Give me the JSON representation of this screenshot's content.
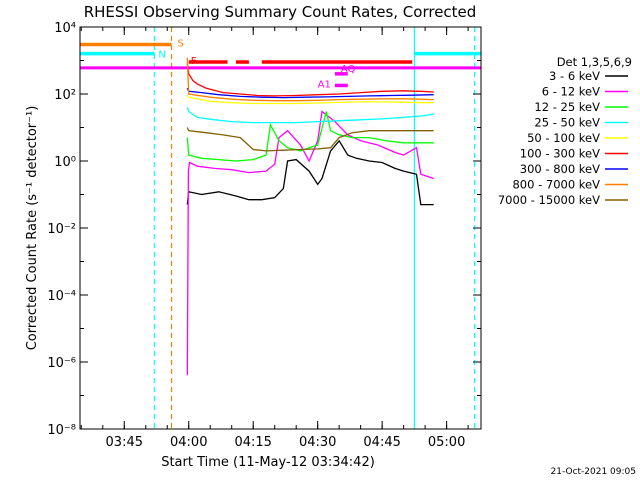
{
  "chart_data": {
    "type": "line",
    "title": "RHESSI Observing Summary Count Rates, Corrected",
    "xlabel": "Start Time (11-May-12 03:34:42)",
    "ylabel": "Corrected Count Rate (s⁻¹ detector⁻¹)",
    "yscale": "log",
    "xlim": [
      "03:34:42",
      "05:08:00"
    ],
    "ylim": [
      1e-08,
      10000
    ],
    "x_ticks": [
      "03:45",
      "04:00",
      "04:15",
      "04:30",
      "04:45",
      "05:00"
    ],
    "y_ticks": [
      {
        "value": 1e-08,
        "label": "10⁻⁸"
      },
      {
        "value": 1e-06,
        "label": "10⁻⁶"
      },
      {
        "value": 0.0001,
        "label": "10⁻⁴"
      },
      {
        "value": 0.01,
        "label": "10⁻²"
      },
      {
        "value": 1,
        "label": "10⁰"
      },
      {
        "value": 100,
        "label": "10²"
      },
      {
        "value": 10000,
        "label": "10⁴"
      }
    ],
    "legend_title": "Det 1,3,5,6,9",
    "legend_position": "right",
    "series": [
      {
        "name": "3 - 6 keV",
        "color": "#000000",
        "x": [
          "03:59:40",
          "04:00:00",
          "04:03:00",
          "04:07:00",
          "04:11:00",
          "04:14:00",
          "04:17:00",
          "04:20:00",
          "04:22:00",
          "04:23:00",
          "04:25:00",
          "04:28:00",
          "04:30:00",
          "04:31:00",
          "04:33:00",
          "04:35:00",
          "04:37:00",
          "04:39:00",
          "04:42:00",
          "04:45:00",
          "04:48:00",
          "04:50:00",
          "04:53:00",
          "04:54:00",
          "04:57:00"
        ],
        "values": [
          0.05,
          0.12,
          0.1,
          0.12,
          0.09,
          0.07,
          0.07,
          0.08,
          0.15,
          1.0,
          1.1,
          0.5,
          0.2,
          0.3,
          2.0,
          4.0,
          1.5,
          1.2,
          1.0,
          0.9,
          0.6,
          0.5,
          0.4,
          0.05,
          0.05
        ]
      },
      {
        "name": "6 - 12 keV",
        "color": "#ff00ff",
        "x": [
          "03:59:40",
          "03:59:55",
          "04:00:10",
          "04:02:00",
          "04:06:00",
          "04:10:00",
          "04:14:00",
          "04:18:00",
          "04:20:00",
          "04:21:00",
          "04:23:00",
          "04:26:00",
          "04:28:00",
          "04:30:00",
          "04:31:00",
          "04:34:00",
          "04:37:00",
          "04:40:00",
          "04:44:00",
          "04:48:00",
          "04:50:00",
          "04:53:00",
          "04:54:00",
          "04:57:00"
        ],
        "values": [
          4e-07,
          0.5,
          0.9,
          0.7,
          0.6,
          0.55,
          0.45,
          0.5,
          0.8,
          5.0,
          8.0,
          3.0,
          1.0,
          4.0,
          30,
          15,
          6,
          4,
          3,
          1.8,
          1.5,
          2.5,
          0.4,
          0.3
        ]
      },
      {
        "name": "12 - 25 keV",
        "color": "#00ff00",
        "x": [
          "03:59:40",
          "04:00:00",
          "04:03:00",
          "04:07:00",
          "04:11:00",
          "04:15:00",
          "04:18:00",
          "04:19:00",
          "04:21:00",
          "04:23:00",
          "04:26:00",
          "04:28:00",
          "04:30:00",
          "04:32:00",
          "04:33:00",
          "04:35:00",
          "04:38:00",
          "04:42:00",
          "04:46:00",
          "04:50:00",
          "04:54:00",
          "04:57:00"
        ],
        "values": [
          5,
          1.5,
          1.2,
          1.1,
          1.0,
          1.1,
          1.5,
          12,
          4,
          2.5,
          2.0,
          2.5,
          3,
          30,
          8,
          6,
          5,
          5,
          4,
          3.5,
          3.5,
          3.5
        ]
      },
      {
        "name": "25 - 50 keV",
        "color": "#00ffff",
        "x": [
          "03:59:40",
          "04:00:00",
          "04:02:00",
          "04:06:00",
          "04:10:00",
          "04:15:00",
          "04:20:00",
          "04:25:00",
          "04:30:00",
          "04:35:00",
          "04:40:00",
          "04:45:00",
          "04:50:00",
          "04:54:00",
          "04:57:00"
        ],
        "values": [
          40,
          30,
          20,
          17,
          15,
          14,
          14,
          14,
          15,
          16,
          17,
          18,
          20,
          22,
          25
        ]
      },
      {
        "name": "50 - 100 keV",
        "color": "#ffff00",
        "x": [
          "03:59:40",
          "04:00:00",
          "04:05:00",
          "04:10:00",
          "04:15:00",
          "04:20:00",
          "04:25:00",
          "04:30:00",
          "04:35:00",
          "04:40:00",
          "04:45:00",
          "04:50:00",
          "04:54:00",
          "04:57:00"
        ],
        "values": [
          90,
          80,
          60,
          55,
          52,
          52,
          52,
          54,
          56,
          58,
          58,
          57,
          55,
          55
        ]
      },
      {
        "name": "100 - 300 keV",
        "color": "#ff0000",
        "x": [
          "03:59:40",
          "04:00:00",
          "04:01:00",
          "04:02:00",
          "04:04:00",
          "04:08:00",
          "04:12:00",
          "04:16:00",
          "04:20:00",
          "04:25:00",
          "04:30:00",
          "04:35:00",
          "04:40:00",
          "04:45:00",
          "04:50:00",
          "04:54:00",
          "04:57:00"
        ],
        "values": [
          800,
          400,
          250,
          200,
          150,
          110,
          100,
          90,
          88,
          90,
          95,
          100,
          110,
          120,
          125,
          120,
          115
        ]
      },
      {
        "name": "300 - 800 keV",
        "color": "#0000ff",
        "x": [
          "03:59:40",
          "04:00:00",
          "04:03:00",
          "04:07:00",
          "04:12:00",
          "04:17:00",
          "04:22:00",
          "04:27:00",
          "04:32:00",
          "04:37:00",
          "04:42:00",
          "04:47:00",
          "04:52:00",
          "04:57:00"
        ],
        "values": [
          150,
          120,
          110,
          95,
          85,
          80,
          78,
          80,
          82,
          85,
          88,
          90,
          92,
          95
        ]
      },
      {
        "name": "800 - 7000 keV",
        "color": "#ff8000",
        "x": [
          "03:59:40",
          "04:00:00",
          "04:05:00",
          "04:10:00",
          "04:15:00",
          "04:20:00",
          "04:25:00",
          "04:30:00",
          "04:35:00",
          "04:40:00",
          "04:45:00",
          "04:50:00",
          "04:54:00",
          "04:57:00"
        ],
        "values": [
          1200,
          100,
          80,
          70,
          65,
          63,
          63,
          65,
          68,
          70,
          72,
          72,
          70,
          68
        ]
      },
      {
        "name": "7000 - 15000 keV",
        "color": "#806000",
        "x": [
          "03:59:40",
          "04:00:00",
          "04:04:00",
          "04:08:00",
          "04:12:00",
          "04:15:00",
          "04:18:00",
          "04:22:00",
          "04:26:00",
          "04:30:00",
          "04:33:00",
          "04:35:00",
          "04:38:00",
          "04:42:00",
          "04:46:00",
          "04:50:00",
          "04:54:00",
          "04:57:00"
        ],
        "values": [
          10,
          8,
          7,
          6,
          5,
          2.2,
          2.0,
          2.1,
          2.2,
          2.3,
          2.5,
          5,
          7,
          8,
          8,
          8,
          8,
          8
        ]
      }
    ],
    "status_bars": [
      {
        "label": "S",
        "color": "#ff8000",
        "y": 3000,
        "segments": [
          [
            "03:34:42",
            "03:56:00"
          ]
        ]
      },
      {
        "label": "N",
        "color": "#00ffff",
        "y": 1600,
        "segments": [
          [
            "03:34:42",
            "03:52:00"
          ],
          [
            "04:52:30",
            "05:08:00"
          ]
        ]
      },
      {
        "label": "F",
        "color": "#ff0000",
        "y": 900,
        "segments": [
          [
            "04:00:00",
            "04:09:00"
          ],
          [
            "04:11:00",
            "04:14:00"
          ],
          [
            "04:17:00",
            "04:52:00"
          ]
        ]
      },
      {
        "label": "AQ",
        "color": "#ff00ff",
        "y": 400,
        "segments": [
          [
            "04:34:00",
            "04:37:00"
          ]
        ]
      },
      {
        "label": "A1",
        "color": "#ff00ff",
        "y": 180,
        "segments": [
          [
            "04:34:00",
            "04:37:00"
          ]
        ]
      }
    ],
    "attenuator_line": {
      "color": "#ff00ff",
      "y": 600,
      "range": [
        "03:34:42",
        "05:08:00"
      ]
    },
    "vlines": [
      {
        "x": "03:52:00",
        "color": "#00ffff",
        "style": "dashed"
      },
      {
        "x": "03:56:00",
        "color": "#ff8000",
        "style": "dashed"
      },
      {
        "x": "04:52:30",
        "color": "#00ffff",
        "style": "solid"
      },
      {
        "x": "05:06:30",
        "color": "#00ffff",
        "style": "dashed"
      }
    ],
    "footer_date": "21-Oct-2021 09:05"
  }
}
